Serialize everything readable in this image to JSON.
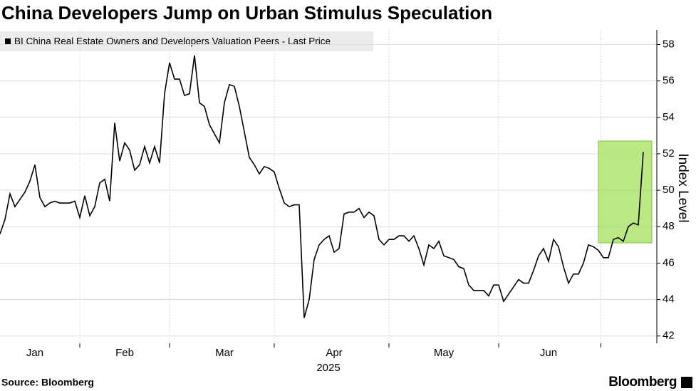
{
  "chart_data": {
    "type": "line",
    "title": "China Developers Jump on Urban Stimulus Speculation",
    "source": "Source: Bloomberg",
    "brand": "Bloomberg",
    "xlabel": "2025",
    "ylabel": "Index Level",
    "categories": [
      null,
      null,
      null,
      null,
      null,
      null,
      null,
      "Jan",
      null,
      null,
      null,
      null,
      null,
      null,
      null,
      null,
      null,
      null,
      null,
      null,
      null,
      null,
      null,
      null,
      null,
      "Feb",
      null,
      null,
      null,
      null,
      null,
      null,
      null,
      null,
      null,
      null,
      null,
      null,
      null,
      null,
      null,
      null,
      null,
      null,
      null,
      "Mar",
      null,
      null,
      null,
      null,
      null,
      null,
      null,
      null,
      null,
      null,
      null,
      null,
      null,
      null,
      null,
      null,
      null,
      null,
      null,
      null,
      null,
      "Apr",
      null,
      null,
      null,
      null,
      null,
      null,
      null,
      null,
      null,
      null,
      null,
      null,
      null,
      null,
      null,
      null,
      null,
      null,
      null,
      null,
      null,
      "May",
      null,
      null,
      null,
      null,
      null,
      null,
      null,
      null,
      null,
      null,
      null,
      null,
      null,
      null,
      null,
      null,
      null,
      null,
      null,
      null,
      "Jun",
      null,
      null,
      null,
      null,
      null,
      null,
      null,
      null,
      null,
      null,
      null,
      null,
      null,
      null,
      null,
      null,
      null,
      null,
      null
    ],
    "series": [
      {
        "name": "BI China Real Estate Owners and Developers Valuation Peers - Last Price",
        "color": "#000000",
        "values": [
          47.6,
          48.4,
          49.8,
          49.1,
          49.5,
          49.9,
          50.5,
          51.4,
          49.6,
          49.1,
          49.3,
          49.4,
          49.3,
          49.3,
          49.3,
          49.4,
          48.5,
          49.7,
          48.6,
          49.1,
          50.4,
          50.6,
          49.4,
          53.7,
          51.6,
          52.6,
          52.2,
          51.1,
          51.4,
          52.4,
          51.5,
          52.4,
          51.5,
          55.3,
          57.0,
          56.1,
          56.1,
          55.2,
          55.3,
          57.4,
          54.8,
          54.6,
          53.6,
          53.1,
          52.6,
          54.8,
          55.8,
          55.7,
          54.6,
          53.2,
          51.8,
          51.4,
          50.9,
          51.3,
          51.2,
          51.0,
          50.1,
          49.3,
          49.1,
          49.2,
          49.2,
          43.0,
          44.0,
          46.2,
          47.0,
          47.3,
          47.5,
          46.6,
          46.8,
          48.7,
          48.8,
          48.8,
          49.0,
          48.5,
          48.8,
          48.6,
          47.3,
          47.0,
          47.3,
          47.3,
          47.5,
          47.5,
          47.2,
          47.5,
          46.8,
          45.9,
          47.0,
          46.8,
          47.2,
          46.4,
          46.3,
          46.2,
          45.8,
          45.7,
          44.8,
          44.5,
          44.5,
          44.5,
          44.2,
          44.8,
          44.8,
          43.9,
          44.3,
          44.7,
          45.1,
          44.9,
          44.9,
          45.6,
          46.4,
          46.8,
          46.1,
          47.3,
          46.9,
          45.8,
          44.9,
          45.4,
          45.4,
          46.0,
          47.0,
          46.9,
          46.7,
          46.3,
          46.3,
          47.3,
          47.4,
          47.2,
          48.0,
          48.2,
          48.1,
          52.1
        ]
      }
    ],
    "ylim": [
      41.6,
      58.8
    ],
    "yticks": [
      42,
      44,
      46,
      48,
      50,
      52,
      54,
      56,
      58
    ],
    "grid": true
  }
}
